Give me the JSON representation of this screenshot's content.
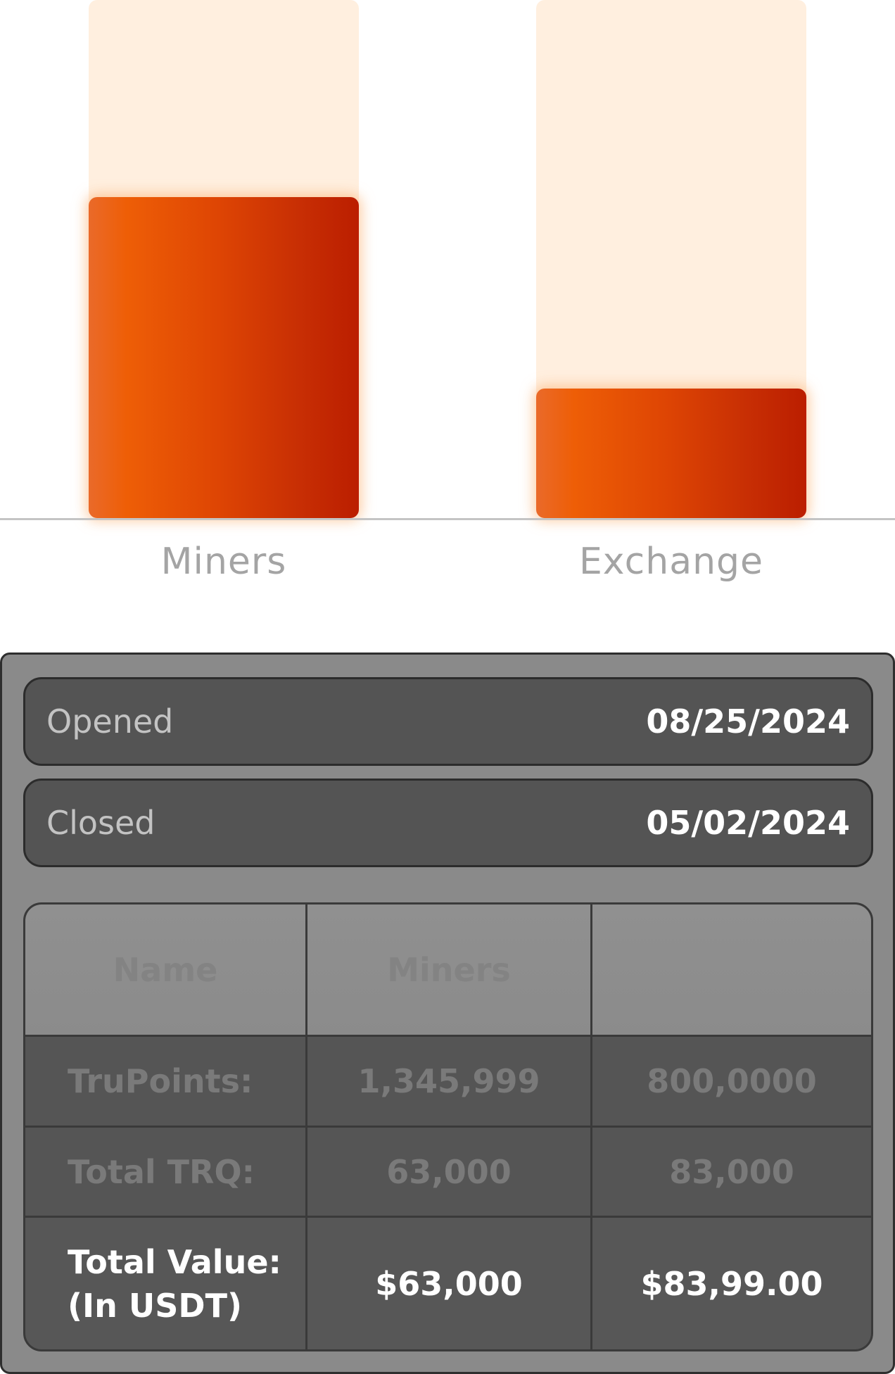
{
  "chart_data": {
    "type": "bar",
    "categories": [
      "Miners",
      "Exchange"
    ],
    "values": [
      62,
      25
    ],
    "ylim": [
      0,
      100
    ],
    "colors": {
      "fill_start": "#ee5e06",
      "fill_end": "#bb1e00",
      "track": "#ffefdf",
      "axis": "#c4c4c4"
    }
  },
  "details": {
    "opened": {
      "label": "Opened",
      "value": "08/25/2024"
    },
    "closed": {
      "label": "Closed",
      "value": "05/02/2024"
    }
  },
  "table": {
    "headers": [
      "Name",
      "Miners",
      ""
    ],
    "rows": [
      {
        "label": "TruPoints:",
        "miners": "1,345,999",
        "exchange": "800,0000"
      },
      {
        "label": "Total TRQ:",
        "miners": "63,000",
        "exchange": "83,000"
      }
    ],
    "total": {
      "label_line1": "Total Value:",
      "label_line2": "(In USDT)",
      "miners": "$63,000",
      "exchange": "$83,99.00"
    }
  },
  "colors": {
    "card_bg": "#8a8a8a",
    "row_bg": "#545454",
    "label_text": "#c3c3c3",
    "value_text": "#ffffff"
  }
}
